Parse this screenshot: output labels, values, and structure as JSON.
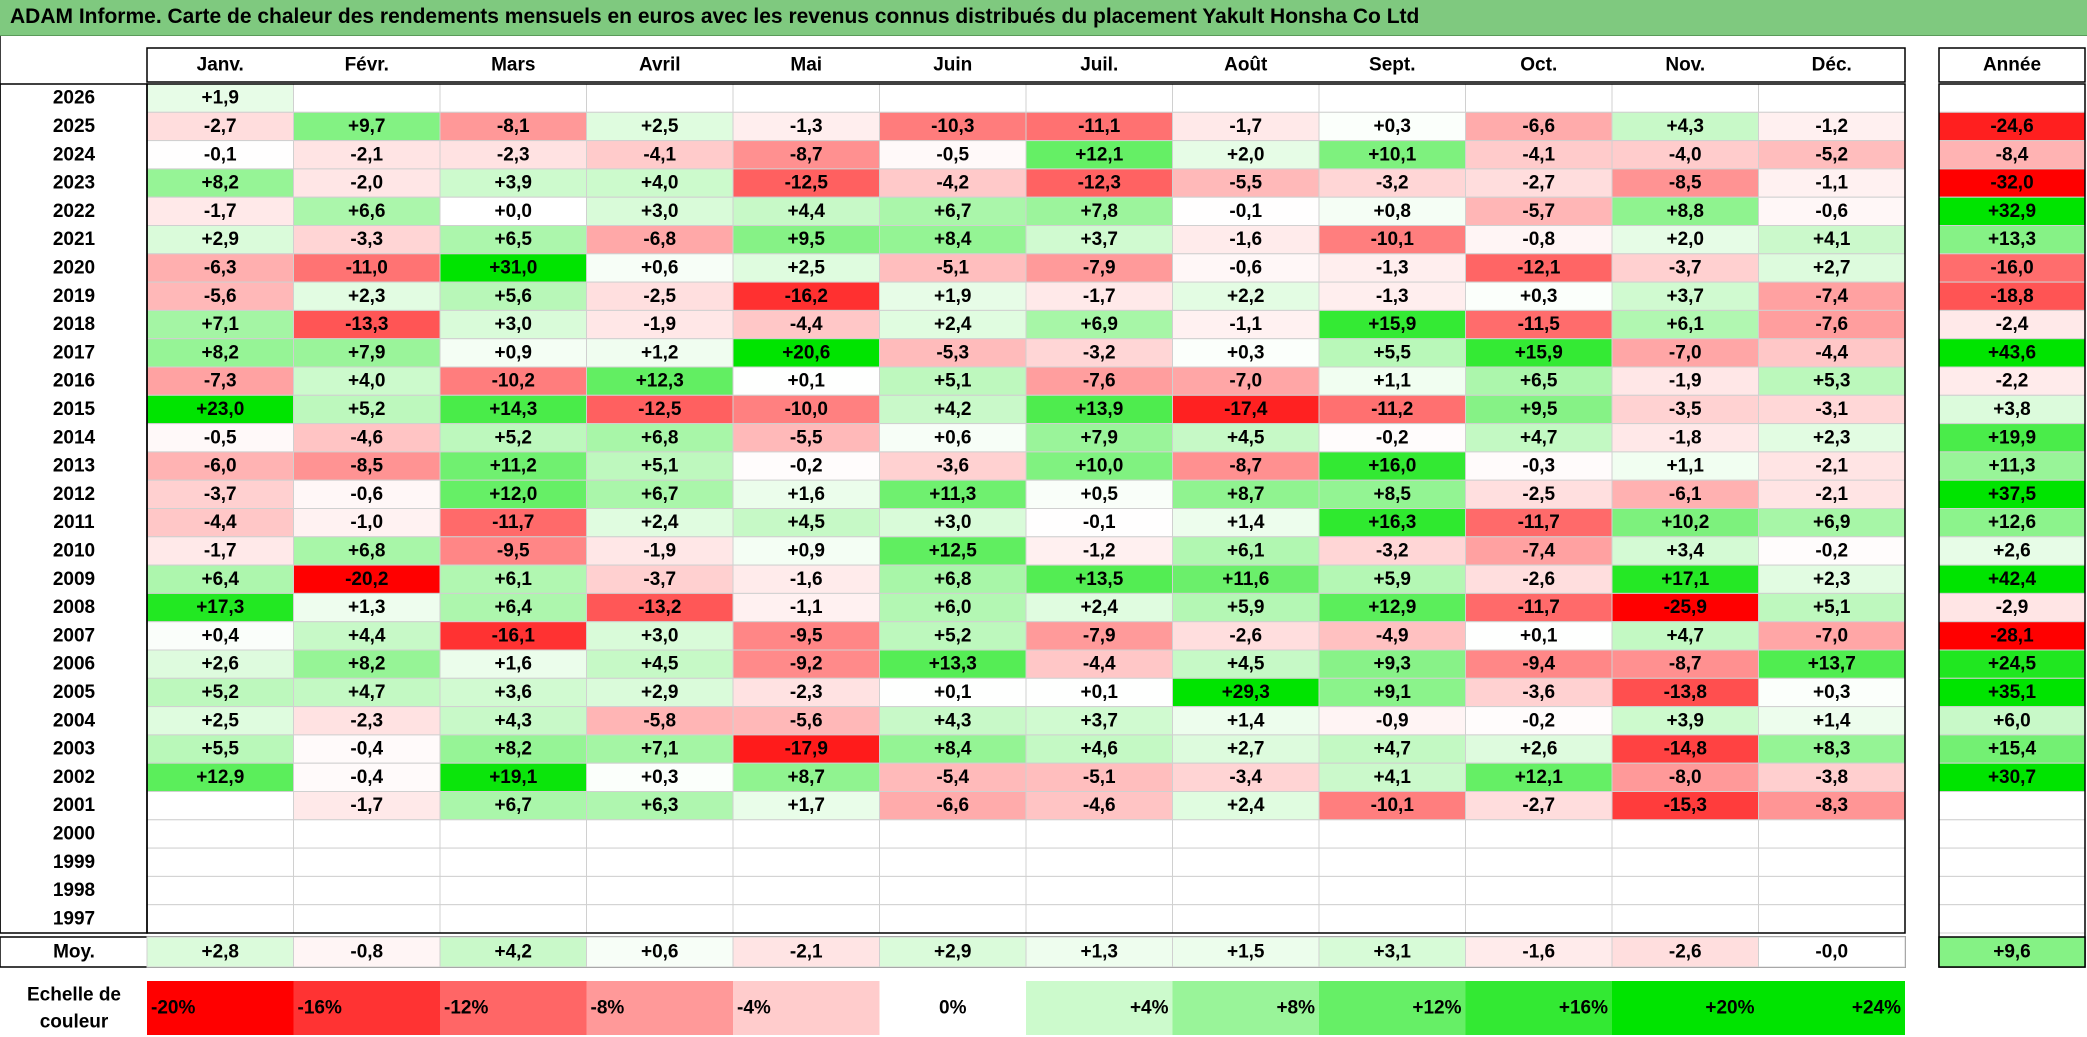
{
  "title": "ADAM Informe. Carte de chaleur des rendements mensuels en euros avec les revenus connus distribués du placement Yakult Honsha Co Ltd",
  "chart_data": {
    "type": "heatmap",
    "months": [
      "Janv.",
      "Févr.",
      "Mars",
      "Avril",
      "Mai",
      "Juin",
      "Juil.",
      "Août",
      "Sept.",
      "Oct.",
      "Nov.",
      "Déc."
    ],
    "annual_label": "Année",
    "avg_label": "Moy.",
    "scale_label": "Echelle de couleur",
    "years": [
      "2026",
      "2025",
      "2024",
      "2023",
      "2022",
      "2021",
      "2020",
      "2019",
      "2018",
      "2017",
      "2016",
      "2015",
      "2014",
      "2013",
      "2012",
      "2011",
      "2010",
      "2009",
      "2008",
      "2007",
      "2006",
      "2005",
      "2004",
      "2003",
      "2002",
      "2001",
      "2000",
      "1999",
      "1998",
      "1997"
    ],
    "values": [
      [
        "+1,9",
        "",
        "",
        "",
        "",
        "",
        "",
        "",
        "",
        "",
        "",
        ""
      ],
      [
        "-2,7",
        "+9,7",
        "-8,1",
        "+2,5",
        "-1,3",
        "-10,3",
        "-11,1",
        "-1,7",
        "+0,3",
        "-6,6",
        "+4,3",
        "-1,2"
      ],
      [
        "-0,1",
        "-2,1",
        "-2,3",
        "-4,1",
        "-8,7",
        "-0,5",
        "+12,1",
        "+2,0",
        "+10,1",
        "-4,1",
        "-4,0",
        "-5,2"
      ],
      [
        "+8,2",
        "-2,0",
        "+3,9",
        "+4,0",
        "-12,5",
        "-4,2",
        "-12,3",
        "-5,5",
        "-3,2",
        "-2,7",
        "-8,5",
        "-1,1"
      ],
      [
        "-1,7",
        "+6,6",
        "+0,0",
        "+3,0",
        "+4,4",
        "+6,7",
        "+7,8",
        "-0,1",
        "+0,8",
        "-5,7",
        "+8,8",
        "-0,6"
      ],
      [
        "+2,9",
        "-3,3",
        "+6,5",
        "-6,8",
        "+9,5",
        "+8,4",
        "+3,7",
        "-1,6",
        "-10,1",
        "-0,8",
        "+2,0",
        "+4,1"
      ],
      [
        "-6,3",
        "-11,0",
        "+31,0",
        "+0,6",
        "+2,5",
        "-5,1",
        "-7,9",
        "-0,6",
        "-1,3",
        "-12,1",
        "-3,7",
        "+2,7"
      ],
      [
        "-5,6",
        "+2,3",
        "+5,6",
        "-2,5",
        "-16,2",
        "+1,9",
        "-1,7",
        "+2,2",
        "-1,3",
        "+0,3",
        "+3,7",
        "-7,4"
      ],
      [
        "+7,1",
        "-13,3",
        "+3,0",
        "-1,9",
        "-4,4",
        "+2,4",
        "+6,9",
        "-1,1",
        "+15,9",
        "-11,5",
        "+6,1",
        "-7,6"
      ],
      [
        "+8,2",
        "+7,9",
        "+0,9",
        "+1,2",
        "+20,6",
        "-5,3",
        "-3,2",
        "+0,3",
        "+5,5",
        "+15,9",
        "-7,0",
        "-4,4"
      ],
      [
        "-7,3",
        "+4,0",
        "-10,2",
        "+12,3",
        "+0,1",
        "+5,1",
        "-7,6",
        "-7,0",
        "+1,1",
        "+6,5",
        "-1,9",
        "+5,3"
      ],
      [
        "+23,0",
        "+5,2",
        "+14,3",
        "-12,5",
        "-10,0",
        "+4,2",
        "+13,9",
        "-17,4",
        "-11,2",
        "+9,5",
        "-3,5",
        "-3,1"
      ],
      [
        "-0,5",
        "-4,6",
        "+5,2",
        "+6,8",
        "-5,5",
        "+0,6",
        "+7,9",
        "+4,5",
        "-0,2",
        "+4,7",
        "-1,8",
        "+2,3"
      ],
      [
        "-6,0",
        "-8,5",
        "+11,2",
        "+5,1",
        "-0,2",
        "-3,6",
        "+10,0",
        "-8,7",
        "+16,0",
        "-0,3",
        "+1,1",
        "-2,1"
      ],
      [
        "-3,7",
        "-0,6",
        "+12,0",
        "+6,7",
        "+1,6",
        "+11,3",
        "+0,5",
        "+8,7",
        "+8,5",
        "-2,5",
        "-6,1",
        "-2,1"
      ],
      [
        "-4,4",
        "-1,0",
        "-11,7",
        "+2,4",
        "+4,5",
        "+3,0",
        "-0,1",
        "+1,4",
        "+16,3",
        "-11,7",
        "+10,2",
        "+6,9"
      ],
      [
        "-1,7",
        "+6,8",
        "-9,5",
        "-1,9",
        "+0,9",
        "+12,5",
        "-1,2",
        "+6,1",
        "-3,2",
        "-7,4",
        "+3,4",
        "-0,2"
      ],
      [
        "+6,4",
        "-20,2",
        "+6,1",
        "-3,7",
        "-1,6",
        "+6,8",
        "+13,5",
        "+11,6",
        "+5,9",
        "-2,6",
        "+17,1",
        "+2,3"
      ],
      [
        "+17,3",
        "+1,3",
        "+6,4",
        "-13,2",
        "-1,1",
        "+6,0",
        "+2,4",
        "+5,9",
        "+12,9",
        "-11,7",
        "-25,9",
        "+5,1"
      ],
      [
        "+0,4",
        "+4,4",
        "-16,1",
        "+3,0",
        "-9,5",
        "+5,2",
        "-7,9",
        "-2,6",
        "-4,9",
        "+0,1",
        "+4,7",
        "-7,0"
      ],
      [
        "+2,6",
        "+8,2",
        "+1,6",
        "+4,5",
        "-9,2",
        "+13,3",
        "-4,4",
        "+4,5",
        "+9,3",
        "-9,4",
        "-8,7",
        "+13,7"
      ],
      [
        "+5,2",
        "+4,7",
        "+3,6",
        "+2,9",
        "-2,3",
        "+0,1",
        "+0,1",
        "+29,3",
        "+9,1",
        "-3,6",
        "-13,8",
        "+0,3"
      ],
      [
        "+2,5",
        "-2,3",
        "+4,3",
        "-5,8",
        "-5,6",
        "+4,3",
        "+3,7",
        "+1,4",
        "-0,9",
        "-0,2",
        "+3,9",
        "+1,4"
      ],
      [
        "+5,5",
        "-0,4",
        "+8,2",
        "+7,1",
        "-17,9",
        "+8,4",
        "+4,6",
        "+2,7",
        "+4,7",
        "+2,6",
        "-14,8",
        "+8,3"
      ],
      [
        "+12,9",
        "-0,4",
        "+19,1",
        "+0,3",
        "+8,7",
        "-5,4",
        "-5,1",
        "-3,4",
        "+4,1",
        "+12,1",
        "-8,0",
        "-3,8"
      ],
      [
        "",
        "-1,7",
        "+6,7",
        "+6,3",
        "+1,7",
        "-6,6",
        "-4,6",
        "+2,4",
        "-10,1",
        "-2,7",
        "-15,3",
        "-8,3"
      ],
      [
        "",
        "",
        "",
        "",
        "",
        "",
        "",
        "",
        "",
        "",
        "",
        ""
      ],
      [
        "",
        "",
        "",
        "",
        "",
        "",
        "",
        "",
        "",
        "",
        "",
        ""
      ],
      [
        "",
        "",
        "",
        "",
        "",
        "",
        "",
        "",
        "",
        "",
        "",
        ""
      ],
      [
        "",
        "",
        "",
        "",
        "",
        "",
        "",
        "",
        "",
        "",
        "",
        ""
      ]
    ],
    "annual": [
      "",
      "-24,6",
      "-8,4",
      "-32,0",
      "+32,9",
      "+13,3",
      "-16,0",
      "-18,8",
      "-2,4",
      "+43,6",
      "-2,2",
      "+3,8",
      "+19,9",
      "+11,3",
      "+37,5",
      "+12,6",
      "+2,6",
      "+42,4",
      "-2,9",
      "-28,1",
      "+24,5",
      "+35,1",
      "+6,0",
      "+15,4",
      "+30,7",
      "",
      "",
      "",
      "",
      ""
    ],
    "averages": [
      "+2,8",
      "-0,8",
      "+4,2",
      "+0,6",
      "-2,1",
      "+2,9",
      "+1,3",
      "+1,5",
      "+3,1",
      "-1,6",
      "-2,6",
      "-0,0"
    ],
    "annual_average": "+9,6",
    "scale": [
      "-20%",
      "-16%",
      "-12%",
      "-8%",
      "-4%",
      "0%",
      "+4%",
      "+8%",
      "+12%",
      "+16%",
      "+20%",
      "+24%"
    ],
    "colors": {
      "negative": "#ff0000",
      "positive": "#00e000",
      "neutral": "#ffffff",
      "title_bg": "#7fc97f"
    }
  }
}
